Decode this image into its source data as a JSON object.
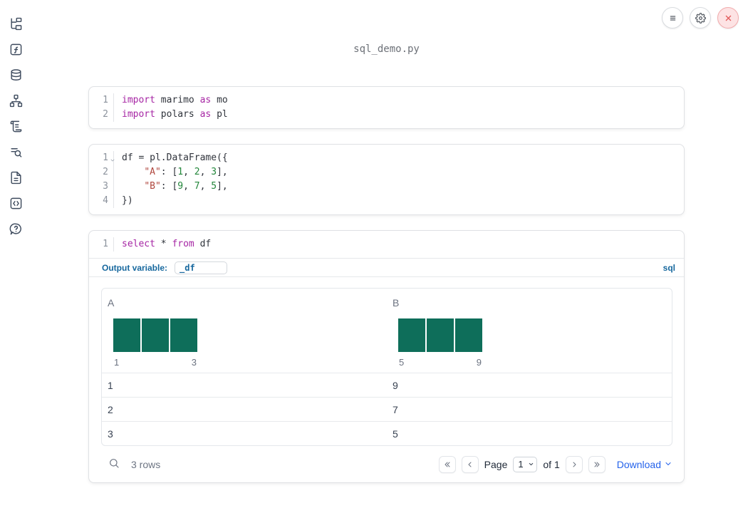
{
  "window": {
    "title": "sql_demo.py"
  },
  "topbar": {
    "buttons": [
      {
        "icon": "menu"
      },
      {
        "icon": "settings"
      },
      {
        "icon": "close"
      }
    ]
  },
  "sidebar": {
    "items": [
      {
        "icon": "file-tree"
      },
      {
        "icon": "function-square"
      },
      {
        "icon": "database"
      },
      {
        "icon": "dependency-graph"
      },
      {
        "icon": "scroll"
      },
      {
        "icon": "list-search"
      },
      {
        "icon": "document"
      },
      {
        "icon": "code-snippet"
      },
      {
        "icon": "help-chat"
      }
    ]
  },
  "cells": [
    {
      "name": "imports-cell",
      "lines": [
        {
          "n": "1",
          "tokens": [
            [
              "kw",
              "import"
            ],
            [
              "pl",
              " marimo "
            ],
            [
              "kw",
              "as"
            ],
            [
              "pl",
              " mo"
            ]
          ]
        },
        {
          "n": "2",
          "tokens": [
            [
              "kw",
              "import"
            ],
            [
              "pl",
              " polars "
            ],
            [
              "kw",
              "as"
            ],
            [
              "pl",
              " pl"
            ]
          ]
        }
      ]
    },
    {
      "name": "dataframe-cell",
      "lines": [
        {
          "n": "1",
          "fold": true,
          "tokens": [
            [
              "pl",
              "df = pl.DataFrame({"
            ]
          ]
        },
        {
          "n": "2",
          "tokens": [
            [
              "pl",
              "    "
            ],
            [
              "str",
              "\"A\""
            ],
            [
              "pl",
              ": ["
            ],
            [
              "num",
              "1"
            ],
            [
              "pl",
              ", "
            ],
            [
              "num",
              "2"
            ],
            [
              "pl",
              ", "
            ],
            [
              "num",
              "3"
            ],
            [
              "pl",
              "],"
            ]
          ]
        },
        {
          "n": "3",
          "tokens": [
            [
              "pl",
              "    "
            ],
            [
              "str",
              "\"B\""
            ],
            [
              "pl",
              ": ["
            ],
            [
              "num",
              "9"
            ],
            [
              "pl",
              ", "
            ],
            [
              "num",
              "7"
            ],
            [
              "pl",
              ", "
            ],
            [
              "num",
              "5"
            ],
            [
              "pl",
              "],"
            ]
          ]
        },
        {
          "n": "4",
          "tokens": [
            [
              "pl",
              "})"
            ]
          ]
        }
      ]
    },
    {
      "name": "sql-cell",
      "lines": [
        {
          "n": "1",
          "tokens": [
            [
              "kw",
              "select"
            ],
            [
              "pl",
              " * "
            ],
            [
              "kw",
              "from"
            ],
            [
              "pl",
              " df"
            ]
          ]
        }
      ],
      "output_variable_label": "Output variable:",
      "output_variable_value": "_df",
      "language_badge": "sql"
    }
  ],
  "table": {
    "columns": [
      {
        "name": "A",
        "hist": {
          "bars": 3,
          "min_label": "1",
          "max_label": "3"
        }
      },
      {
        "name": "B",
        "hist": {
          "bars": 3,
          "min_label": "5",
          "max_label": "9"
        }
      }
    ],
    "rows": [
      [
        "1",
        "9"
      ],
      [
        "2",
        "7"
      ],
      [
        "3",
        "5"
      ]
    ],
    "footer": {
      "row_count": "3 rows",
      "page_label": "Page",
      "page_value": "1",
      "of_label": "of 1",
      "download_label": "Download"
    }
  },
  "colors": {
    "histogram_bar": "#0e6e5a",
    "keyword_purple": "#a626a4",
    "string_red": "#b0473e",
    "number_green": "#22863a",
    "label_blue": "#17689e",
    "download_blue": "#2563eb",
    "close_red": "#e25757"
  }
}
